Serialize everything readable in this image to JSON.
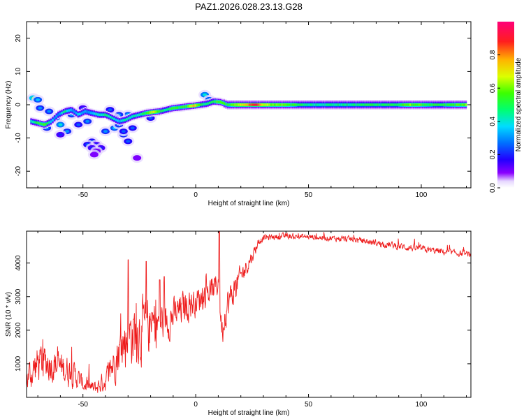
{
  "figure_title": "PAZ1.2026.028.23.13.G28",
  "colors": {
    "trace": "#ee1c1c",
    "frame": "#000000"
  },
  "chart_data": [
    {
      "type": "heatmap",
      "title": "PAZ1.2026.028.23.13.G28",
      "xlabel": "Height of straight line (km)",
      "ylabel": "Frequency (Hz)",
      "xlim": [
        -75,
        122
      ],
      "ylim": [
        -25,
        25
      ],
      "x_ticks": [
        -50,
        0,
        50,
        100
      ],
      "x_tick_labels": [
        "-50",
        "0",
        "50",
        "100"
      ],
      "y_ticks": [
        -20,
        -10,
        0,
        10,
        20
      ],
      "y_tick_labels": [
        "-20",
        "-10",
        "0",
        "10",
        "20"
      ],
      "colorbar": {
        "label": "Normalized spectral amplitude",
        "range": [
          0,
          1
        ],
        "ticks": [
          0.0,
          0.2,
          0.4,
          0.6,
          0.8
        ],
        "tick_labels": [
          "0.0",
          "0.2",
          "0.4",
          "0.6",
          "0.8"
        ]
      },
      "ridge": {
        "description": "main frequency ridge (x in km, center frequency in Hz, normalized amplitude)",
        "x": [
          -73,
          -70,
          -67,
          -64,
          -61,
          -58,
          -55,
          -52,
          -49,
          -46,
          -43,
          -40,
          -37,
          -34,
          -31,
          -28,
          -25,
          -22,
          -19,
          -16,
          -13,
          -10,
          -7,
          -4,
          -1,
          2,
          5,
          8,
          11,
          14,
          18,
          22,
          26,
          30,
          35,
          40,
          45,
          50,
          55,
          60,
          65,
          70,
          75,
          80,
          85,
          90,
          95,
          100,
          105,
          110,
          115,
          120
        ],
        "f": [
          -5,
          -5.5,
          -6,
          -5,
          -3,
          -2,
          -1.5,
          -3,
          -2,
          -2.5,
          -3,
          -3,
          -4,
          -5,
          -4.5,
          -3.5,
          -3,
          -2.5,
          -2.2,
          -2,
          -1.5,
          -1,
          -0.8,
          -0.5,
          -0.3,
          0,
          0.3,
          1,
          0.8,
          0,
          0,
          0,
          0,
          0,
          0,
          0,
          0,
          0,
          0,
          0,
          0,
          0,
          0,
          0,
          0,
          0,
          0,
          0,
          0,
          0,
          0,
          0
        ],
        "amp": [
          0.4,
          0.5,
          0.55,
          0.35,
          0.3,
          0.45,
          0.3,
          0.35,
          0.3,
          0.35,
          0.4,
          0.45,
          0.4,
          0.35,
          0.45,
          0.4,
          0.45,
          0.55,
          0.7,
          0.5,
          0.45,
          0.55,
          0.5,
          0.55,
          0.75,
          0.5,
          0.45,
          0.5,
          0.6,
          0.5,
          0.65,
          0.7,
          0.95,
          0.65,
          0.6,
          0.6,
          0.5,
          0.45,
          0.45,
          0.45,
          0.45,
          0.45,
          0.5,
          0.5,
          0.5,
          0.5,
          0.6,
          0.55,
          0.5,
          0.5,
          0.55,
          0.6
        ]
      },
      "patches": {
        "description": "secondary spectral blobs (x in km, frequency in Hz, normalized amplitude)",
        "x": [
          -72,
          -69,
          -66,
          -62,
          -60,
          -57,
          -55,
          -52,
          -50,
          -48,
          -46,
          -44,
          -42,
          -40,
          -38,
          -36,
          -34,
          -32,
          -30,
          -28,
          -48,
          -46,
          -44,
          -70,
          -65,
          -60,
          -38,
          -34,
          -30,
          -36,
          -32,
          -26,
          4,
          6,
          -45,
          -20
        ],
        "f": [
          2,
          -1,
          -7,
          -4,
          -6,
          -8,
          -3,
          -6,
          -1,
          -5,
          -11,
          -12,
          -13,
          -8,
          -2,
          -7,
          -6,
          -9,
          -3,
          -7,
          -12,
          -13,
          -14,
          1.5,
          -2,
          -9,
          -1.5,
          -3,
          -11,
          -4,
          -8,
          -16,
          3,
          1.5,
          -15,
          -4
        ],
        "amp": [
          0.5,
          0.3,
          0.3,
          0.35,
          0.4,
          0.3,
          0.3,
          0.25,
          0.2,
          0.3,
          0.25,
          0.2,
          0.2,
          0.3,
          0.3,
          0.35,
          0.3,
          0.3,
          0.35,
          0.25,
          0.25,
          0.2,
          0.15,
          0.35,
          0.3,
          0.2,
          0.25,
          0.3,
          0.25,
          0.3,
          0.25,
          0.1,
          0.4,
          0.35,
          0.1,
          0.25
        ]
      }
    },
    {
      "type": "line",
      "xlabel": "Height of straight line (km)",
      "ylabel": "SNR (10 * v/v)",
      "xlim": [
        -75,
        122
      ],
      "ylim": [
        0,
        4950
      ],
      "x_ticks": [
        -50,
        0,
        50,
        100
      ],
      "x_tick_labels": [
        "-50",
        "0",
        "50",
        "100"
      ],
      "y_ticks": [
        1000,
        2000,
        3000,
        4000
      ],
      "y_tick_labels": [
        "1000",
        "2000",
        "3000",
        "4000"
      ],
      "envelope_note": "baseline trend of SNR vs height in data units; the noisy trace is drawn around it",
      "x": [
        -75,
        -70,
        -65,
        -60,
        -55,
        -50,
        -45,
        -40,
        -35,
        -30,
        -25,
        -20,
        -15,
        -10,
        -5,
        0,
        5,
        9,
        10,
        11,
        12,
        13,
        15,
        20,
        25,
        28,
        30,
        35,
        40,
        50,
        60,
        70,
        80,
        90,
        100,
        110,
        122
      ],
      "y": [
        550,
        1000,
        1050,
        900,
        750,
        400,
        250,
        500,
        1250,
        1800,
        2000,
        2100,
        2250,
        2400,
        2700,
        2850,
        3100,
        3300,
        3500,
        2400,
        2000,
        2600,
        2900,
        3600,
        4200,
        4650,
        4750,
        4780,
        4800,
        4780,
        4740,
        4700,
        4600,
        4500,
        4420,
        4330,
        4250
      ],
      "spread": [
        400,
        550,
        500,
        450,
        400,
        220,
        200,
        300,
        600,
        900,
        900,
        800,
        600,
        500,
        450,
        380,
        350,
        380,
        450,
        300,
        350,
        500,
        450,
        320,
        180,
        120,
        90,
        80,
        80,
        80,
        80,
        90,
        90,
        100,
        100,
        90,
        80
      ],
      "spikes": {
        "x": [
          -30,
          -22,
          -16,
          -14,
          10.4
        ],
        "y": [
          4100,
          4050,
          3500,
          3600,
          4950
        ]
      }
    }
  ]
}
